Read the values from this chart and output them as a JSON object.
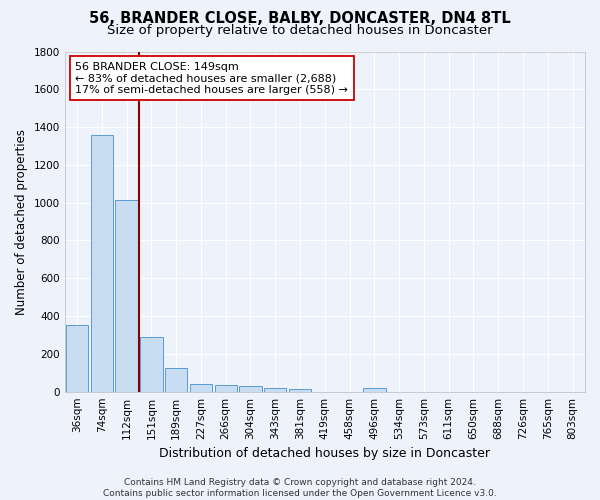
{
  "title": "56, BRANDER CLOSE, BALBY, DONCASTER, DN4 8TL",
  "subtitle": "Size of property relative to detached houses in Doncaster",
  "xlabel": "Distribution of detached houses by size in Doncaster",
  "ylabel": "Number of detached properties",
  "categories": [
    "36sqm",
    "74sqm",
    "112sqm",
    "151sqm",
    "189sqm",
    "227sqm",
    "266sqm",
    "304sqm",
    "343sqm",
    "381sqm",
    "419sqm",
    "458sqm",
    "496sqm",
    "534sqm",
    "573sqm",
    "611sqm",
    "650sqm",
    "688sqm",
    "726sqm",
    "765sqm",
    "803sqm"
  ],
  "values": [
    355,
    1360,
    1015,
    290,
    125,
    42,
    35,
    28,
    20,
    15,
    0,
    0,
    20,
    0,
    0,
    0,
    0,
    0,
    0,
    0,
    0
  ],
  "bar_color": "#c9ddf2",
  "bar_edge_color": "#5b9bd5",
  "vline_x_pos": 2.5,
  "vline_color": "#8b0000",
  "annotation_line1": "56 BRANDER CLOSE: 149sqm",
  "annotation_line2": "← 83% of detached houses are smaller (2,688)",
  "annotation_line3": "17% of semi-detached houses are larger (558) →",
  "annotation_box_color": "#ffffff",
  "annotation_box_edge": "#cc0000",
  "ylim": [
    0,
    1800
  ],
  "yticks": [
    0,
    200,
    400,
    600,
    800,
    1000,
    1200,
    1400,
    1600,
    1800
  ],
  "background_color": "#eef2fb",
  "grid_color": "#ffffff",
  "footer": "Contains HM Land Registry data © Crown copyright and database right 2024.\nContains public sector information licensed under the Open Government Licence v3.0.",
  "title_fontsize": 10.5,
  "subtitle_fontsize": 9.5,
  "xlabel_fontsize": 9,
  "ylabel_fontsize": 8.5,
  "tick_fontsize": 7.5,
  "annot_fontsize": 8,
  "footer_fontsize": 6.5
}
